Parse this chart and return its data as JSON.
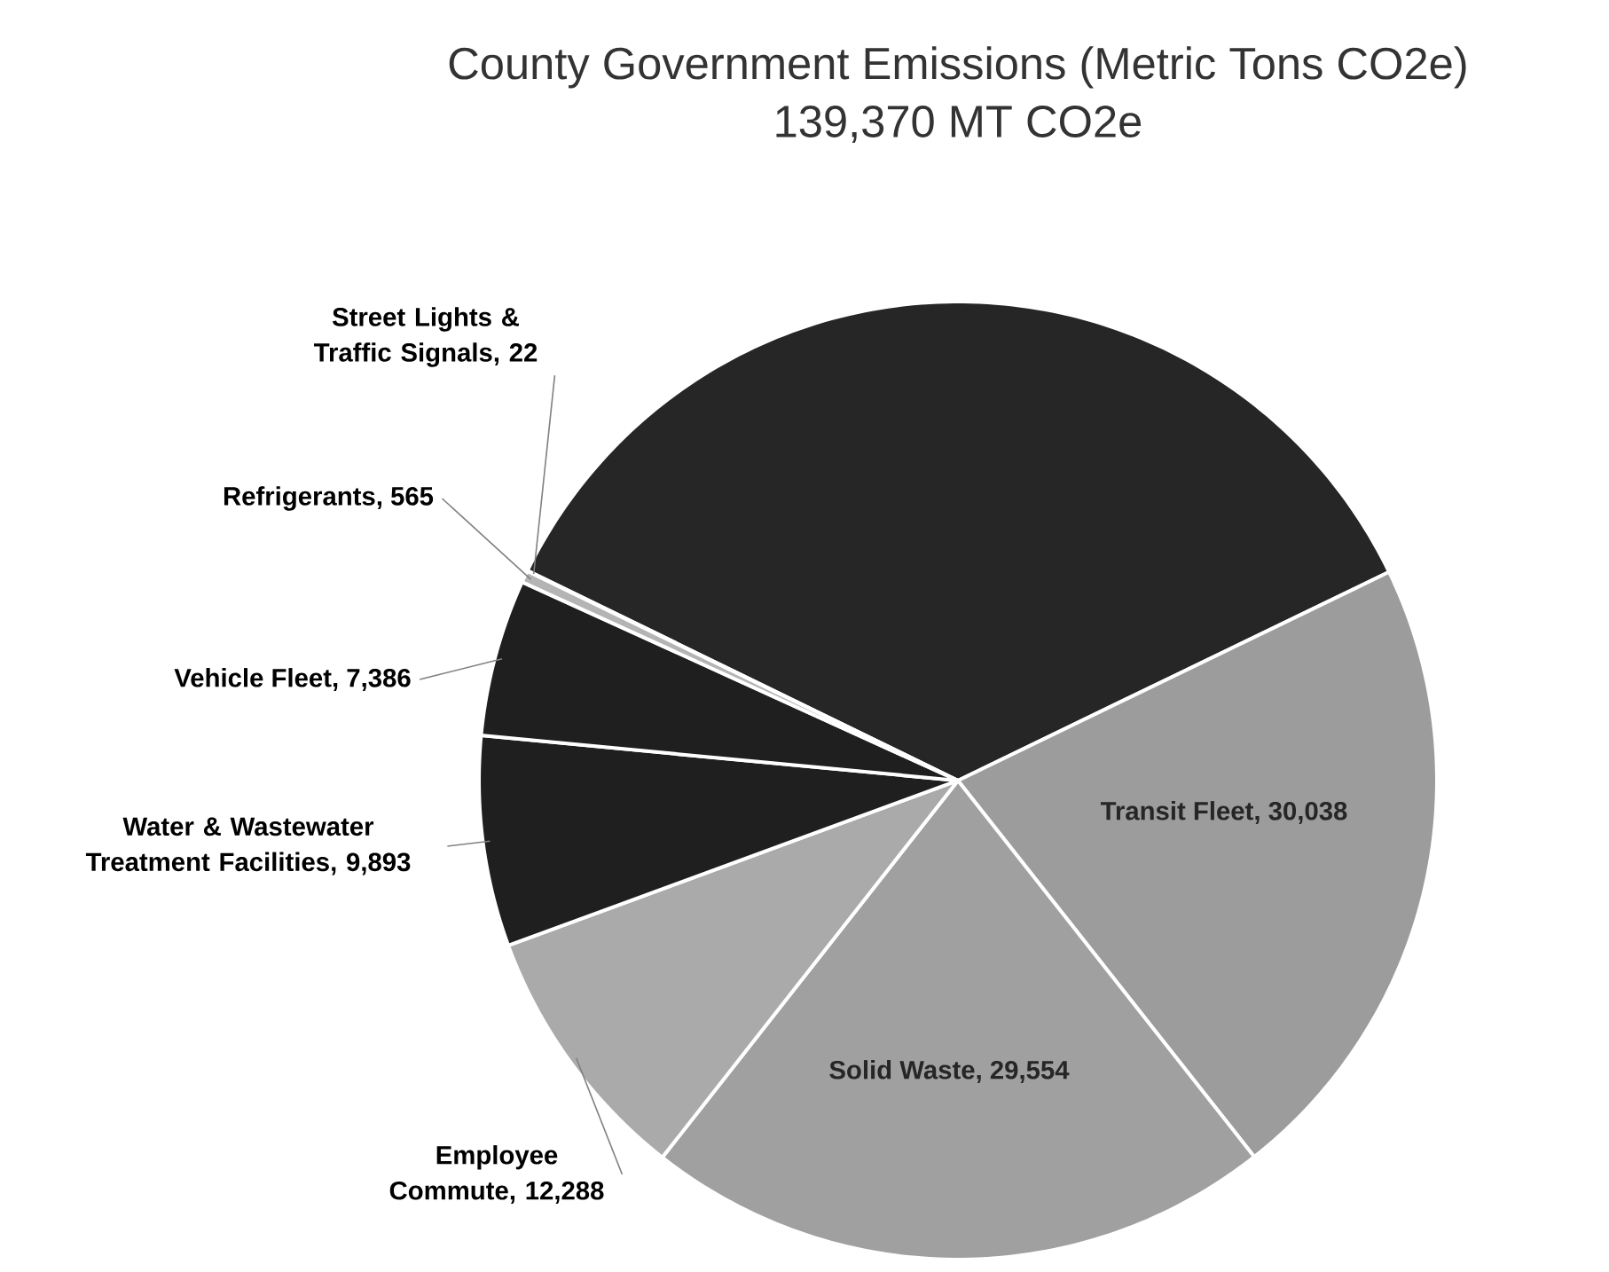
{
  "chart_data": {
    "type": "pie",
    "title": "County Government Emissions (Metric Tons CO2e)",
    "subtitle": "139,370 MT CO2e",
    "categories": [
      null,
      "Transit Fleet",
      "Solid Waste",
      "Employee Commute",
      "Water & Wastewater Treatment Facilities",
      "Vehicle Fleet",
      "Refrigerants",
      "Street Lights & Traffic Signals"
    ],
    "values": [
      49624,
      30038,
      29554,
      12288,
      9893,
      7386,
      565,
      22
    ],
    "value_labels": [
      null,
      ", 30,038",
      ", 29,554",
      ", 12,288",
      ", 9,893",
      ", 7,386",
      ", 565",
      ", 22"
    ],
    "colors": [
      "#262626",
      "#9c9c9c",
      "#a0a0a0",
      "#aaaaaa",
      "#1f1f1f",
      "#1f1f1f",
      "#b4b4b4",
      "#c8c8c8"
    ]
  }
}
